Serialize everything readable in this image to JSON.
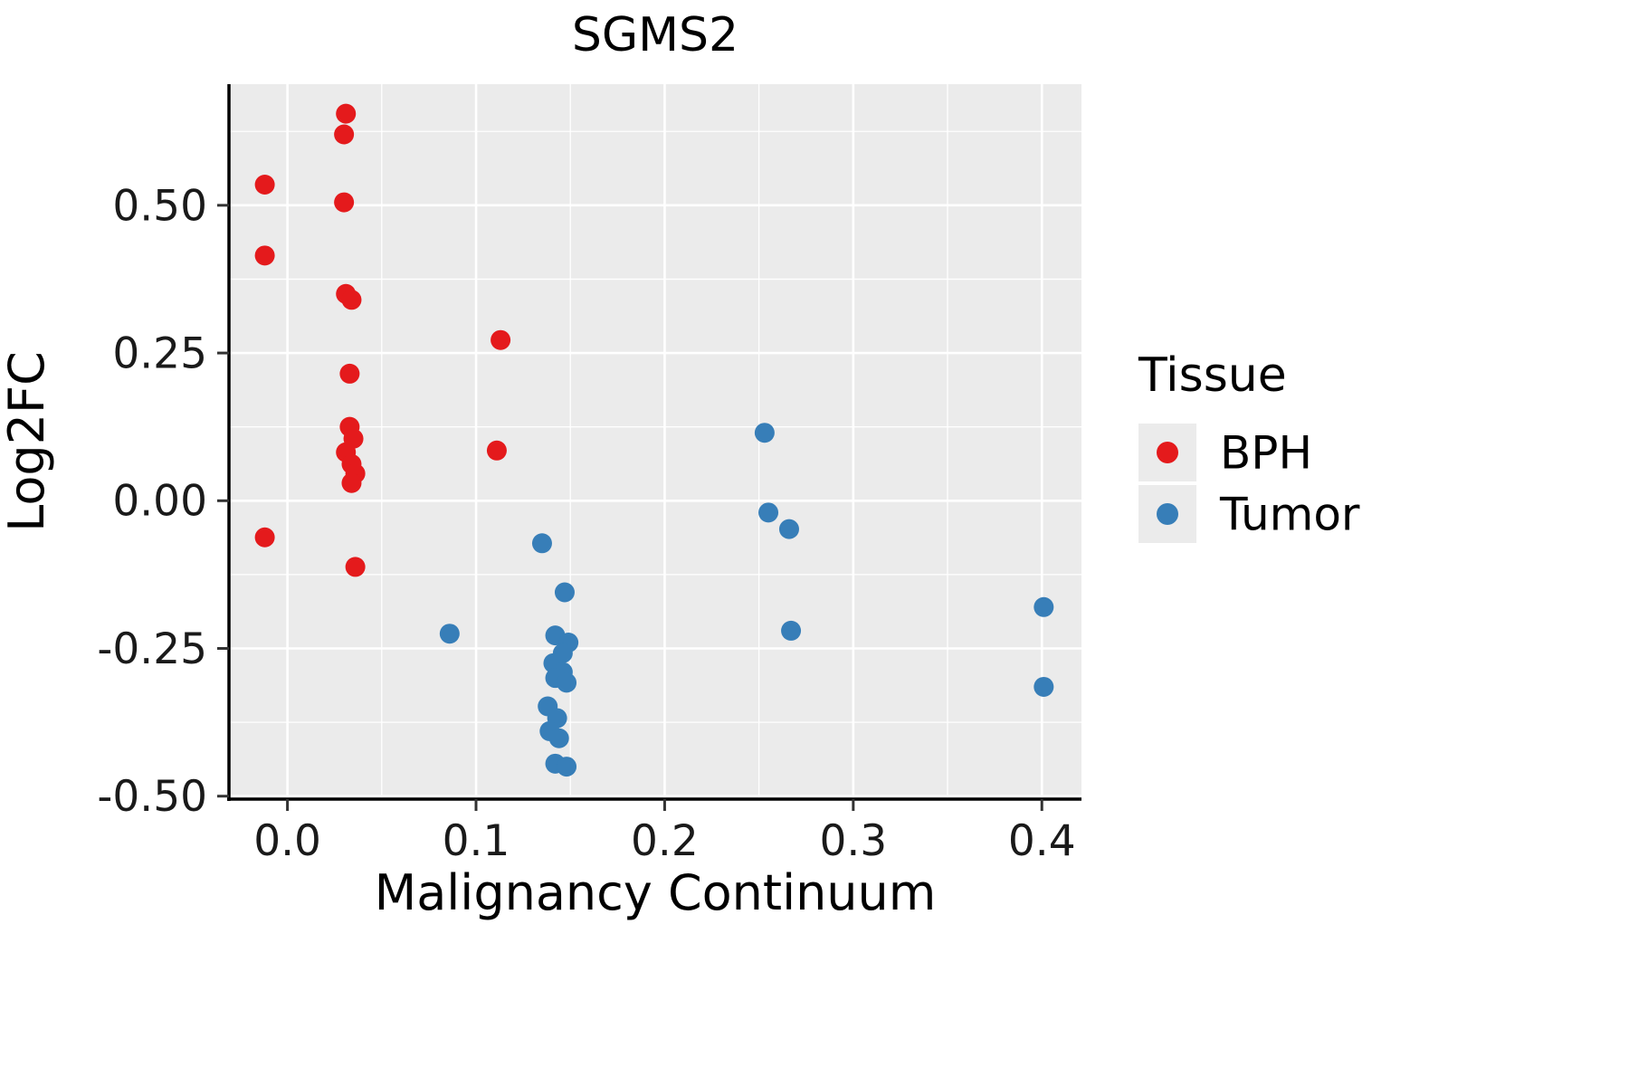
{
  "title": "SGMS2",
  "colors": {
    "panel_bg": "#EBEBEB",
    "grid_major": "#FFFFFF",
    "grid_minor": "#FFFFFF",
    "axis_line": "#000000",
    "tick_mark": "#333333",
    "legend_key_bg": "#EBEBEB",
    "bph": "#E41A1C",
    "tumor": "#377EB8"
  },
  "chart_data": {
    "type": "scatter",
    "title": "SGMS2",
    "xlabel": "Malignancy Continuum",
    "ylabel": "Log2FC",
    "xlim": [
      -0.031,
      0.421
    ],
    "ylim": [
      -0.505,
      0.705
    ],
    "x_ticks": [
      0.0,
      0.1,
      0.2,
      0.3,
      0.4
    ],
    "x_tick_labels": [
      "0.0",
      "0.1",
      "0.2",
      "0.3",
      "0.4"
    ],
    "y_ticks": [
      -0.5,
      -0.25,
      0.0,
      0.25,
      0.5
    ],
    "y_tick_labels": [
      "-0.50",
      "-0.25",
      "0.00",
      "0.25",
      "0.50"
    ],
    "x_minor": [
      0.05,
      0.15,
      0.25,
      0.35
    ],
    "y_minor": [
      -0.375,
      -0.125,
      0.125,
      0.375,
      0.625
    ],
    "grid": true,
    "point_radius": 11,
    "legend": {
      "title": "Tissue",
      "position": "right",
      "entries": [
        {
          "label": "BPH",
          "color": "#E41A1C"
        },
        {
          "label": "Tumor",
          "color": "#377EB8"
        }
      ]
    },
    "series": [
      {
        "name": "BPH",
        "color": "#E41A1C",
        "points": [
          [
            0.031,
            0.655
          ],
          [
            0.03,
            0.62
          ],
          [
            -0.012,
            0.535
          ],
          [
            0.03,
            0.505
          ],
          [
            -0.012,
            0.415
          ],
          [
            0.031,
            0.35
          ],
          [
            0.034,
            0.34
          ],
          [
            0.113,
            0.272
          ],
          [
            0.033,
            0.215
          ],
          [
            0.033,
            0.125
          ],
          [
            0.035,
            0.105
          ],
          [
            0.031,
            0.082
          ],
          [
            0.034,
            0.062
          ],
          [
            0.036,
            0.046
          ],
          [
            0.034,
            0.03
          ],
          [
            0.111,
            0.085
          ],
          [
            -0.012,
            -0.062
          ],
          [
            0.036,
            -0.112
          ]
        ]
      },
      {
        "name": "Tumor",
        "color": "#377EB8",
        "points": [
          [
            0.253,
            0.115
          ],
          [
            0.255,
            -0.02
          ],
          [
            0.266,
            -0.048
          ],
          [
            0.135,
            -0.072
          ],
          [
            0.147,
            -0.155
          ],
          [
            0.086,
            -0.225
          ],
          [
            0.267,
            -0.22
          ],
          [
            0.401,
            -0.18
          ],
          [
            0.401,
            -0.315
          ],
          [
            0.142,
            -0.228
          ],
          [
            0.149,
            -0.24
          ],
          [
            0.146,
            -0.258
          ],
          [
            0.141,
            -0.275
          ],
          [
            0.146,
            -0.29
          ],
          [
            0.142,
            -0.3
          ],
          [
            0.148,
            -0.308
          ],
          [
            0.138,
            -0.348
          ],
          [
            0.143,
            -0.368
          ],
          [
            0.139,
            -0.39
          ],
          [
            0.144,
            -0.402
          ],
          [
            0.142,
            -0.445
          ],
          [
            0.148,
            -0.45
          ]
        ]
      }
    ]
  }
}
